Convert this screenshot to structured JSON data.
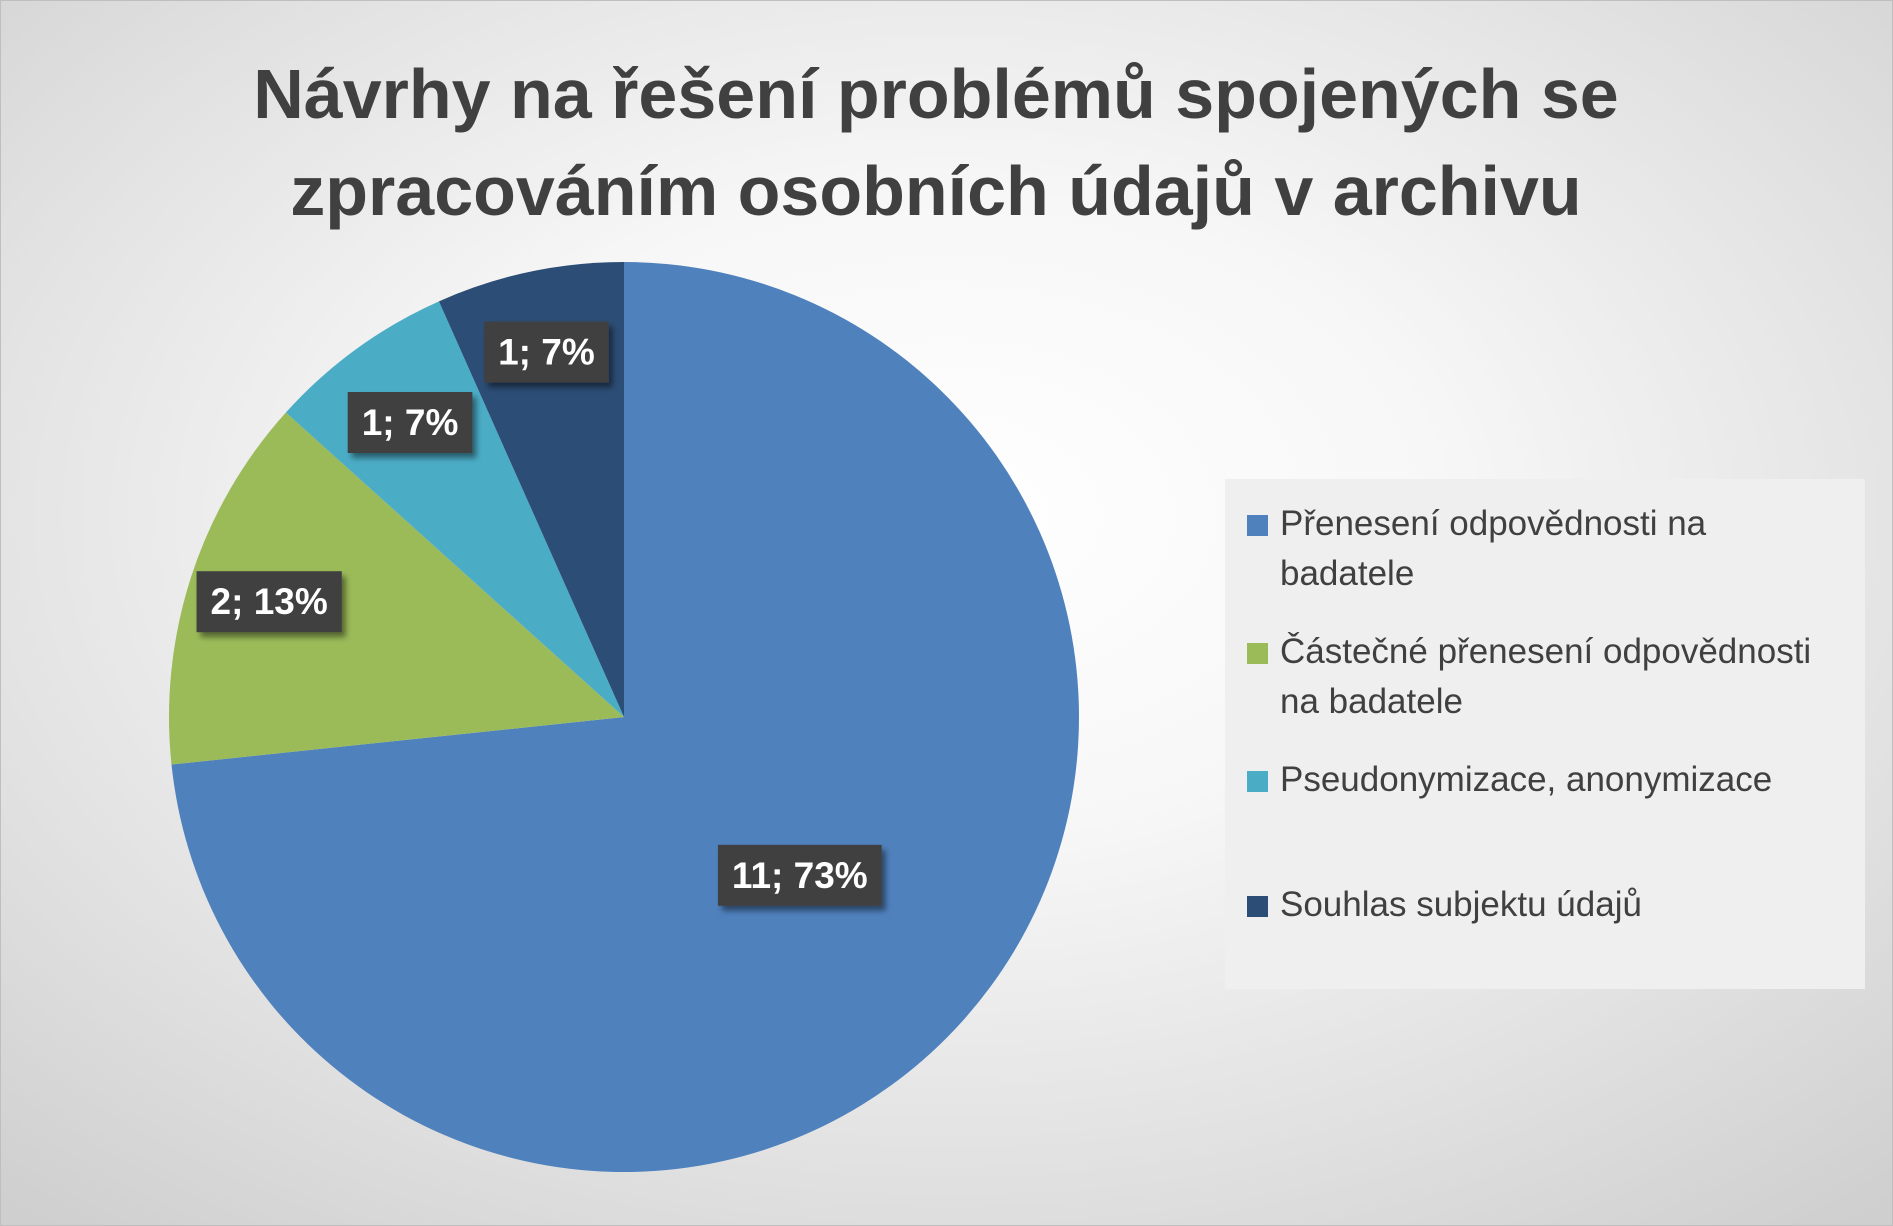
{
  "chart_data": {
    "type": "pie",
    "title": "Návrhy na řešení problémů spojených se zpracováním osobních údajů v archivu",
    "series": [
      {
        "values": [
          11,
          2,
          1,
          1
        ]
      }
    ],
    "slices": [
      {
        "label": "Přenesení odpovědnosti na badatele",
        "value": 11,
        "percent": 73,
        "data_label": "11; 73%",
        "color": "#4f81bd"
      },
      {
        "label": "Částečné přenesení odpovědnosti na badatele",
        "value": 2,
        "percent": 13,
        "data_label": "2; 13%",
        "color": "#9bbb59"
      },
      {
        "label": "Pseudonymizace, anonymizace",
        "value": 1,
        "percent": 7,
        "data_label": "1; 7%",
        "color": "#4bacc6"
      },
      {
        "label": "Souhlas subjektu údajů",
        "value": 1,
        "percent": 7,
        "data_label": "1; 7%",
        "color": "#2c4d75"
      }
    ],
    "legend_position": "right",
    "start_angle": "12 o'clock, clockwise"
  },
  "colors": {
    "label_box": "#404040",
    "label_text": "#ffffff",
    "title_text": "#404040",
    "legend_text": "#404040"
  }
}
